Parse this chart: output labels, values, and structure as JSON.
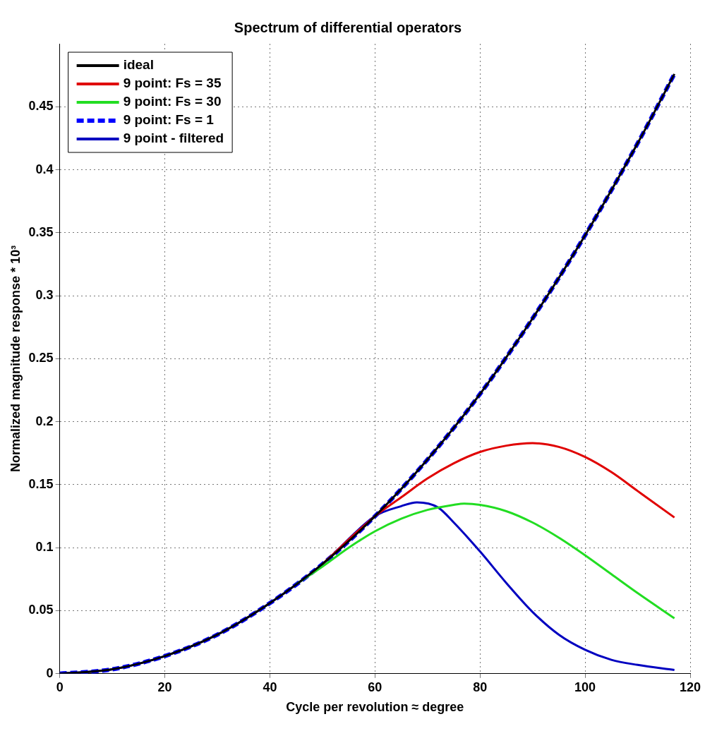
{
  "chart_data": {
    "type": "line",
    "title": "Spectrum of differential operators",
    "xlabel": "Cycle per revolution ≈ degree",
    "ylabel": "Normalized magnitude response * 10³",
    "xlim": [
      0,
      120
    ],
    "xticks": [
      0,
      20,
      40,
      60,
      80,
      100,
      120
    ],
    "ylim": [
      0,
      0.5
    ],
    "yticks": [
      0,
      0.05,
      0.1,
      0.15,
      0.2,
      0.25,
      0.3,
      0.35,
      0.4,
      0.45
    ],
    "grid": true,
    "legend": "top left",
    "marker": "none",
    "series": [
      {
        "name": "ideal",
        "color": "#000000",
        "line_style": "solid",
        "x": [
          0,
          10,
          20,
          30,
          40,
          50,
          60,
          70,
          80,
          90,
          100,
          110,
          117
        ],
        "values": [
          0,
          0.0035,
          0.014,
          0.031,
          0.056,
          0.087,
          0.125,
          0.17,
          0.222,
          0.282,
          0.348,
          0.421,
          0.476
        ]
      },
      {
        "name": "9 point: Fs = 35",
        "color": "#e00000",
        "line_style": "solid",
        "x": [
          50,
          60,
          65,
          70,
          75,
          80,
          85,
          90,
          95,
          100,
          105,
          110,
          117
        ],
        "values": [
          0.087,
          0.125,
          0.14,
          0.155,
          0.167,
          0.176,
          0.181,
          0.183,
          0.18,
          0.172,
          0.16,
          0.145,
          0.124
        ]
      },
      {
        "name": "9 point: Fs = 30",
        "color": "#22dd22",
        "line_style": "solid",
        "x": [
          45,
          50,
          55,
          60,
          65,
          70,
          75,
          77,
          80,
          85,
          90,
          95,
          100,
          105,
          110,
          117
        ],
        "values": [
          0.071,
          0.085,
          0.1,
          0.113,
          0.123,
          0.13,
          0.134,
          0.135,
          0.134,
          0.129,
          0.12,
          0.108,
          0.094,
          0.079,
          0.064,
          0.044
        ]
      },
      {
        "name": "9 point: Fs = 1",
        "color": "#0000ff",
        "line_style": "dashed",
        "x": [
          0,
          10,
          20,
          30,
          40,
          50,
          60,
          70,
          80,
          90,
          100,
          110,
          117
        ],
        "values": [
          0,
          0.0035,
          0.014,
          0.031,
          0.056,
          0.087,
          0.125,
          0.17,
          0.222,
          0.282,
          0.348,
          0.421,
          0.476
        ]
      },
      {
        "name": "9 point - filtered",
        "color": "#0000c0",
        "line_style": "solid",
        "x": [
          0,
          10,
          20,
          30,
          40,
          50,
          60,
          65,
          68,
          72,
          75,
          80,
          85,
          90,
          95,
          100,
          105,
          110,
          117
        ],
        "values": [
          0,
          0.0035,
          0.014,
          0.031,
          0.056,
          0.087,
          0.125,
          0.133,
          0.136,
          0.132,
          0.12,
          0.097,
          0.072,
          0.049,
          0.031,
          0.019,
          0.011,
          0.007,
          0.003
        ]
      }
    ]
  }
}
